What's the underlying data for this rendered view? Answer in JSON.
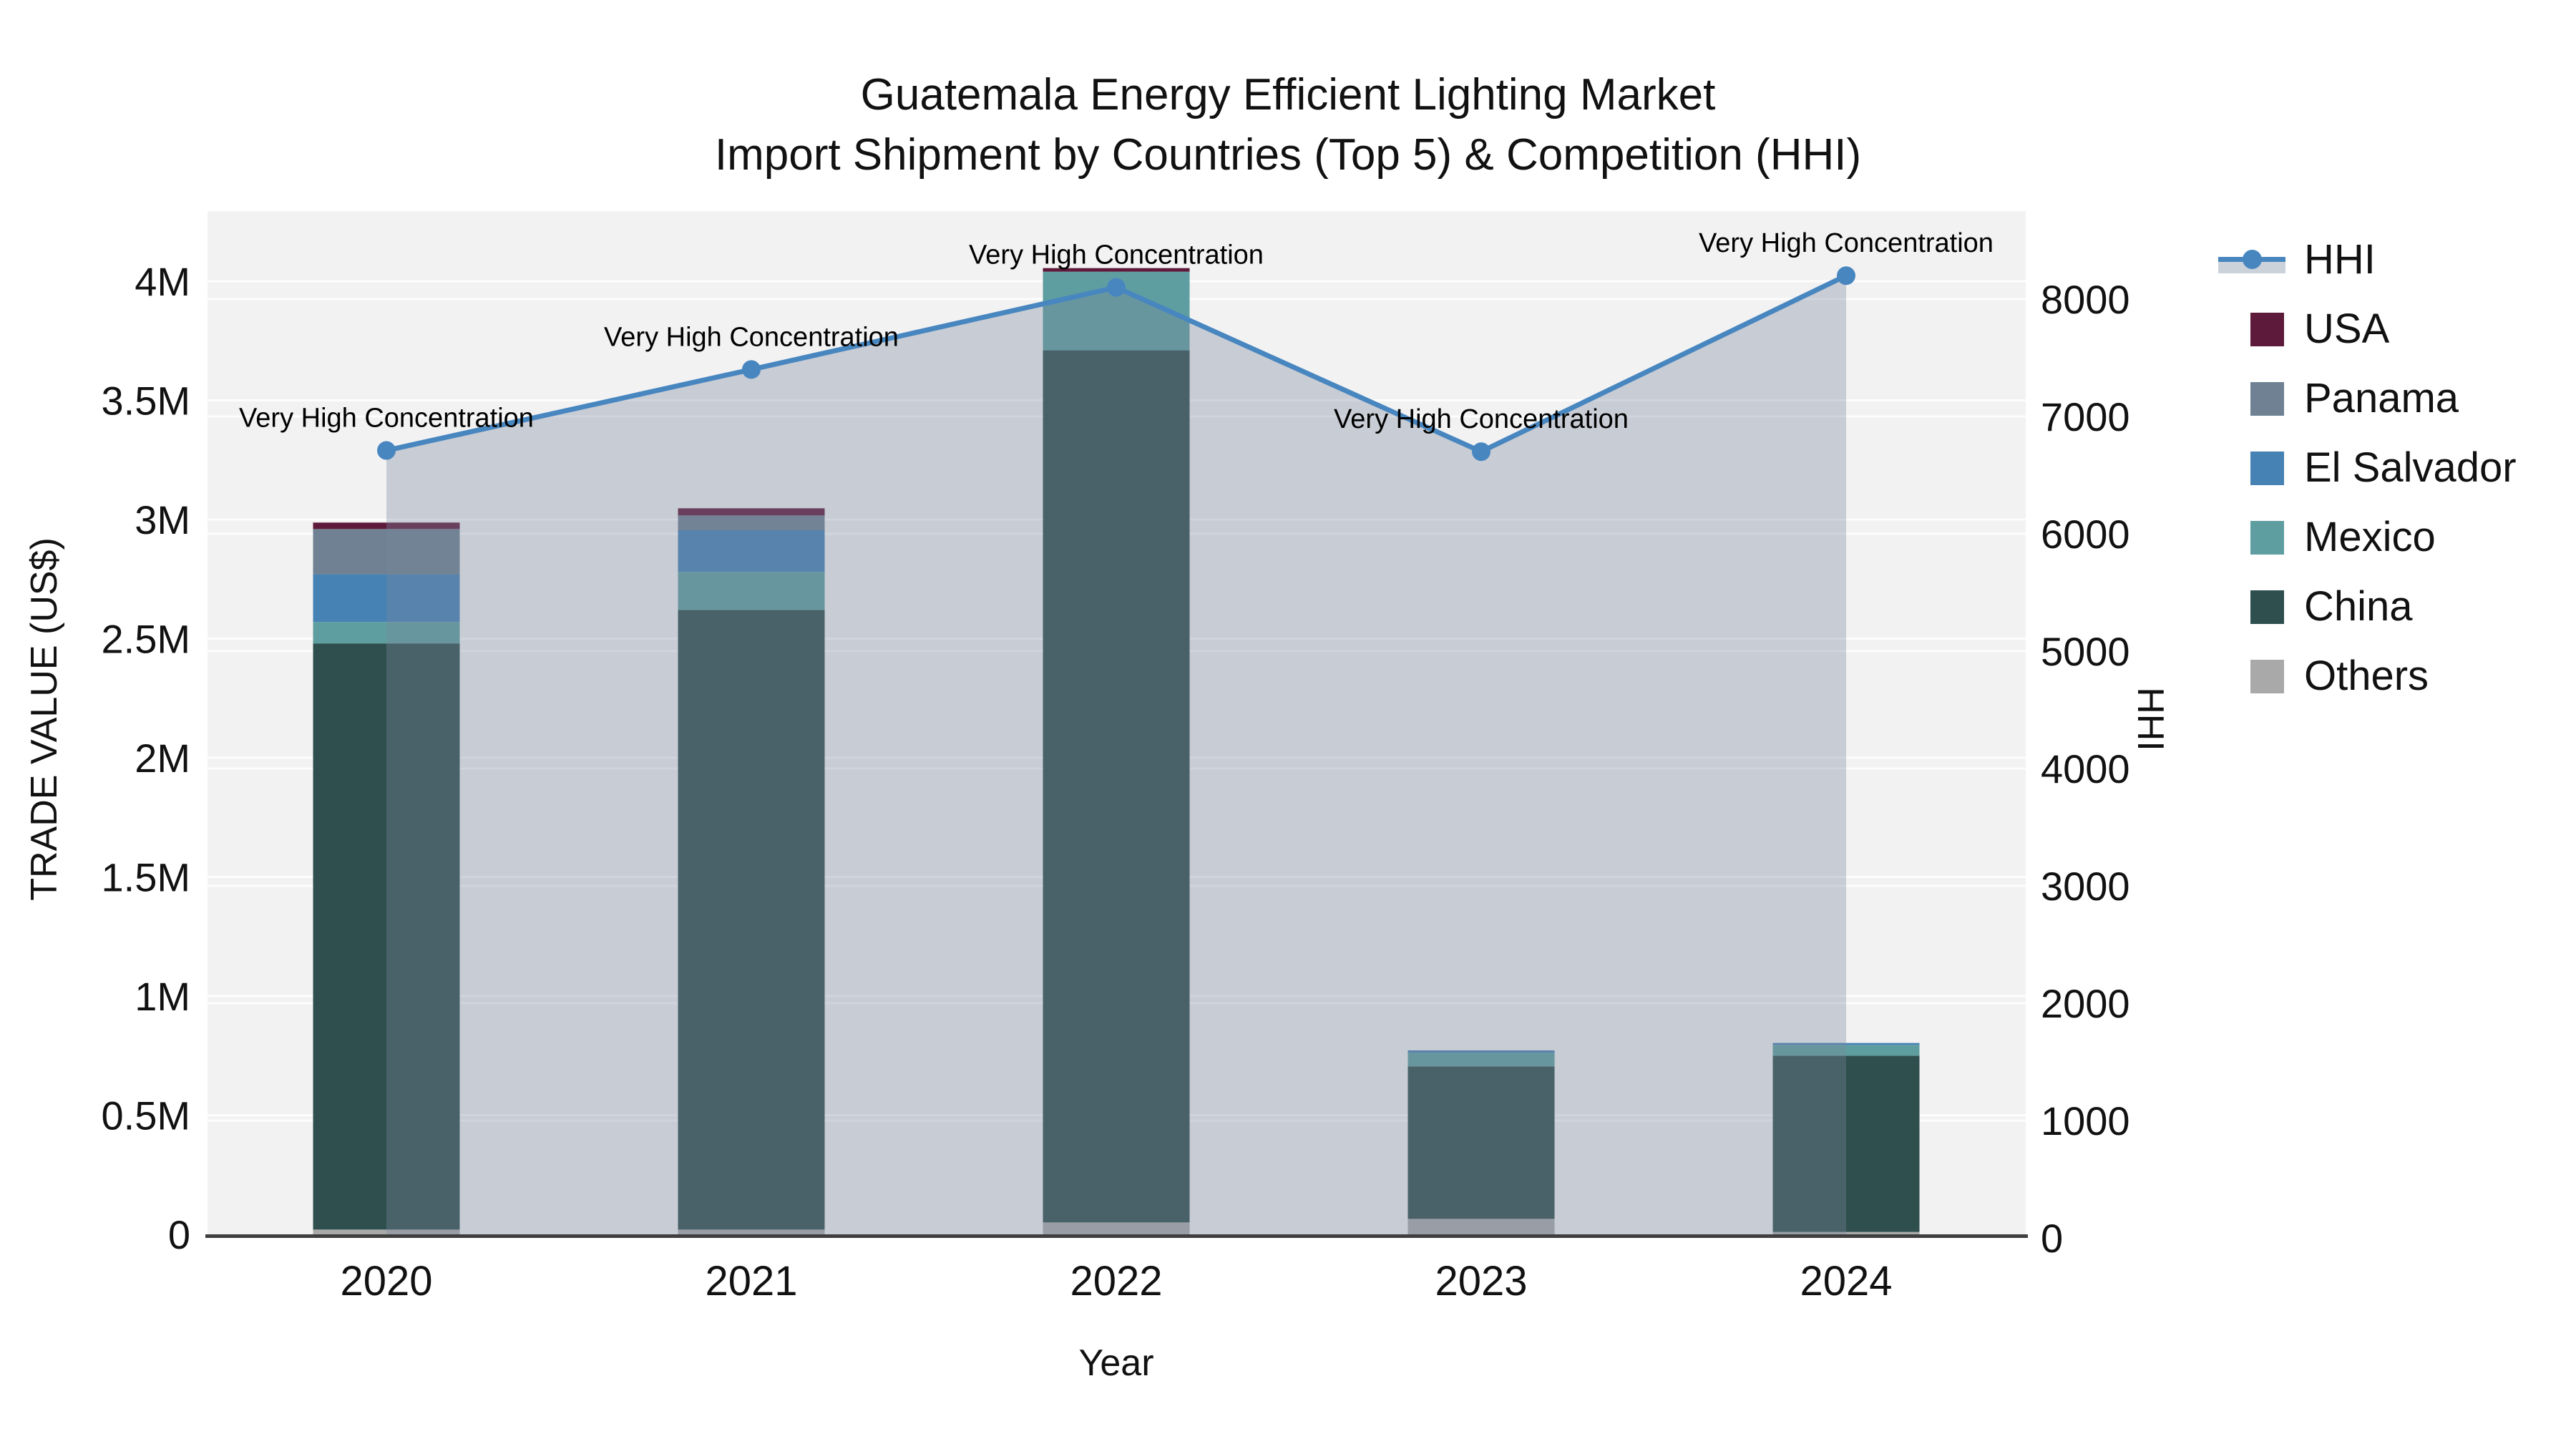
{
  "title": {
    "line1": "Guatemala Energy Efficient Lighting Market",
    "line2": "Import Shipment by Countries (Top 5) & Competition (HHI)"
  },
  "axes": {
    "x": {
      "title": "Year",
      "categories": [
        "2020",
        "2021",
        "2022",
        "2023",
        "2024"
      ]
    },
    "y_left": {
      "title": "TRADE VALUE (US$)",
      "tick_labels": [
        "0",
        "0.5M",
        "1M",
        "1.5M",
        "2M",
        "2.5M",
        "3M",
        "3.5M",
        "4M"
      ],
      "tick_values": [
        0,
        500000,
        1000000,
        1500000,
        2000000,
        2500000,
        3000000,
        3500000,
        4000000
      ]
    },
    "y_right": {
      "title": "HHI",
      "tick_labels": [
        "0",
        "1000",
        "2000",
        "3000",
        "4000",
        "5000",
        "6000",
        "7000",
        "8000"
      ],
      "tick_values": [
        0,
        1000,
        2000,
        3000,
        4000,
        5000,
        6000,
        7000,
        8000
      ]
    }
  },
  "chart_data": {
    "type": "bar+line",
    "categories": [
      "2020",
      "2021",
      "2022",
      "2023",
      "2024"
    ],
    "bar_value_unit": "US$ trade value, stacked by country",
    "series": [
      {
        "name": "Others",
        "color": "#A9A9A9",
        "values": [
          20000,
          20000,
          50000,
          65000,
          10000
        ]
      },
      {
        "name": "China",
        "color": "#2F4F4F",
        "values": [
          2460000,
          2600000,
          3660000,
          640000,
          740000
        ]
      },
      {
        "name": "Mexico",
        "color": "#5F9EA0",
        "values": [
          90000,
          160000,
          330000,
          57000,
          45000
        ]
      },
      {
        "name": "El Salvador",
        "color": "#4682B4",
        "values": [
          200000,
          175000,
          0,
          10000,
          8000
        ]
      },
      {
        "name": "Panama",
        "color": "#6F8193",
        "values": [
          190000,
          62000,
          0,
          0,
          0
        ]
      },
      {
        "name": "USA",
        "color": "#5E1A3A",
        "values": [
          27000,
          30000,
          15000,
          0,
          0
        ]
      }
    ],
    "stack_totals": [
      2987000,
      3047000,
      4055000,
      772000,
      803000
    ],
    "line_series": {
      "name": "HHI",
      "color": "#4886C0",
      "fill_color": "rgba(124,136,159,0.35)",
      "values": [
        6710,
        7400,
        8100,
        6700,
        8200
      ]
    },
    "annotations": [
      {
        "year": "2020",
        "text": "Very High Concentration"
      },
      {
        "year": "2021",
        "text": "Very High Concentration"
      },
      {
        "year": "2022",
        "text": "Very High Concentration"
      },
      {
        "year": "2023",
        "text": "Very High Concentration"
      },
      {
        "year": "2024",
        "text": "Very High Concentration"
      }
    ],
    "ylim_left": [
      0,
      4290000
    ],
    "ylim_right": [
      0,
      8750
    ],
    "grid": true,
    "legend_position": "right"
  },
  "legend": {
    "items": [
      {
        "label": "HHI",
        "type": "line-marker",
        "color": "#4886C0"
      },
      {
        "label": "USA",
        "type": "swatch",
        "color": "#5E1A3A"
      },
      {
        "label": "Panama",
        "type": "swatch",
        "color": "#6F8193"
      },
      {
        "label": "El Salvador",
        "type": "swatch",
        "color": "#4682B4"
      },
      {
        "label": "Mexico",
        "type": "swatch",
        "color": "#5F9EA0"
      },
      {
        "label": "China",
        "type": "swatch",
        "color": "#2F4F4F"
      },
      {
        "label": "Others",
        "type": "swatch",
        "color": "#A9A9A9"
      }
    ]
  },
  "colors": {
    "page_bg": "#FFFFFF",
    "plot_bg": "#F2F2F2",
    "gridline": "rgba(255,255,255,0.85)",
    "axis_line": "#3F3F3F",
    "text": "#111111",
    "annotation_text": "#000000"
  }
}
